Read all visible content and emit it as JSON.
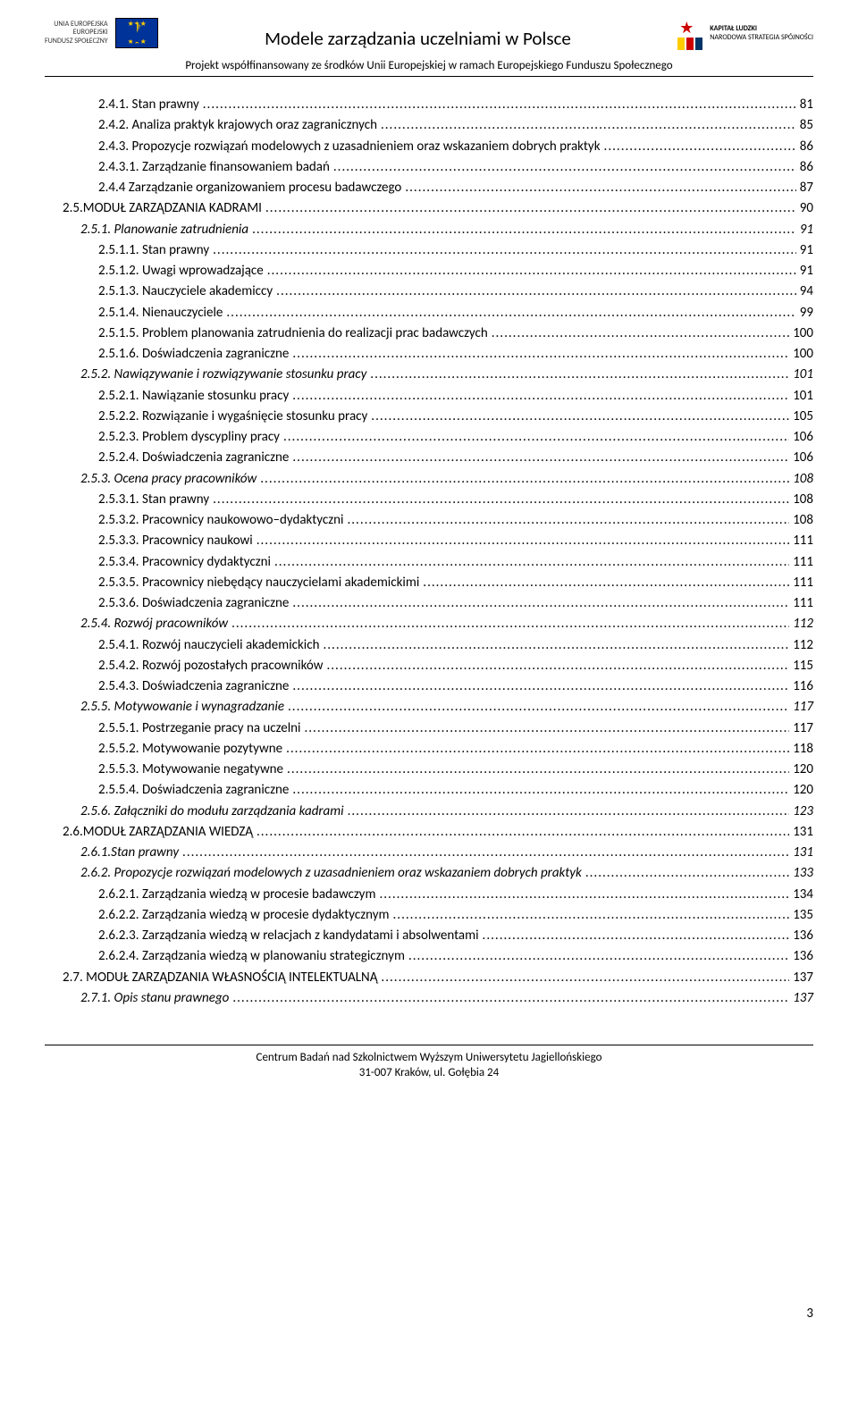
{
  "header": {
    "eu_label_line1": "UNIA EUROPEJSKA",
    "eu_label_line2": "EUROPEJSKI",
    "eu_label_line3": "FUNDUSZ SPOŁECZNY",
    "title": "Modele zarządzania uczelniami w Polsce",
    "kapital_line1": "KAPITAŁ LUDZKI",
    "kapital_line2": "NARODOWA STRATEGIA SPÓJNOŚCI",
    "subtitle": "Projekt współfinansowany ze środków Unii Europejskiej w ramach Europejskiego Funduszu Społecznego"
  },
  "toc": [
    {
      "label": "2.4.1. Stan prawny",
      "page": "81",
      "indent": 3,
      "italic": false
    },
    {
      "label": "2.4.2. Analiza praktyk krajowych oraz zagranicznych",
      "page": "85",
      "indent": 3,
      "italic": false
    },
    {
      "label": "2.4.3. Propozycje rozwiązań modelowych z uzasadnieniem oraz wskazaniem dobrych praktyk",
      "page": "86",
      "indent": 3,
      "italic": false
    },
    {
      "label": "2.4.3.1. Zarządzanie finansowaniem badań",
      "page": "86",
      "indent": 3,
      "italic": false
    },
    {
      "label": "2.4.4 Zarządzanie organizowaniem procesu badawczego",
      "page": "87",
      "indent": 3,
      "italic": false
    },
    {
      "label": "2.5.MODUŁ ZARZĄDZANIA KADRAMI",
      "page": "90",
      "indent": 1,
      "smallcaps": true
    },
    {
      "label": "2.5.1. Planowanie zatrudnienia",
      "page": "91",
      "indent": 2,
      "italic": true
    },
    {
      "label": "2.5.1.1. Stan prawny",
      "page": "91",
      "indent": 3
    },
    {
      "label": "2.5.1.2. Uwagi wprowadzające",
      "page": "91",
      "indent": 3
    },
    {
      "label": "2.5.1.3. Nauczyciele akademiccy",
      "page": "94",
      "indent": 3
    },
    {
      "label": "2.5.1.4. Nienauczyciele",
      "page": "99",
      "indent": 3
    },
    {
      "label": "2.5.1.5. Problem planowania zatrudnienia do realizacji prac badawczych",
      "page": "100",
      "indent": 3
    },
    {
      "label": "2.5.1.6. Doświadczenia zagraniczne",
      "page": "100",
      "indent": 3
    },
    {
      "label": "2.5.2. Nawiązywanie i rozwiązywanie stosunku pracy",
      "page": "101",
      "indent": 2,
      "italic": true
    },
    {
      "label": "2.5.2.1. Nawiązanie stosunku pracy",
      "page": "101",
      "indent": 3
    },
    {
      "label": "2.5.2.2. Rozwiązanie i wygaśnięcie stosunku pracy",
      "page": "105",
      "indent": 3
    },
    {
      "label": "2.5.2.3. Problem dyscypliny pracy",
      "page": "106",
      "indent": 3
    },
    {
      "label": "2.5.2.4. Doświadczenia zagraniczne",
      "page": "106",
      "indent": 3
    },
    {
      "label": "2.5.3. Ocena pracy pracowników",
      "page": "108",
      "indent": 2,
      "italic": true
    },
    {
      "label": "2.5.3.1. Stan prawny",
      "page": "108",
      "indent": 3
    },
    {
      "label": "2.5.3.2. Pracownicy naukowowo–dydaktyczni",
      "page": "108",
      "indent": 3
    },
    {
      "label": "2.5.3.3. Pracownicy naukowi",
      "page": "111",
      "indent": 3
    },
    {
      "label": "2.5.3.4. Pracownicy dydaktyczni",
      "page": "111",
      "indent": 3
    },
    {
      "label": "2.5.3.5. Pracownicy niebędący nauczycielami akademickimi",
      "page": "111",
      "indent": 3
    },
    {
      "label": "2.5.3.6. Doświadczenia zagraniczne",
      "page": "111",
      "indent": 3
    },
    {
      "label": "2.5.4. Rozwój pracowników",
      "page": "112",
      "indent": 2,
      "italic": true
    },
    {
      "label": "2.5.4.1. Rozwój nauczycieli akademickich",
      "page": "112",
      "indent": 3
    },
    {
      "label": "2.5.4.2. Rozwój pozostałych pracowników",
      "page": "115",
      "indent": 3
    },
    {
      "label": "2.5.4.3. Doświadczenia zagraniczne",
      "page": "116",
      "indent": 3
    },
    {
      "label": "2.5.5. Motywowanie i wynagradzanie",
      "page": "117",
      "indent": 2,
      "italic": true
    },
    {
      "label": "2.5.5.1. Postrzeganie pracy na uczelni",
      "page": "117",
      "indent": 3
    },
    {
      "label": "2.5.5.2. Motywowanie pozytywne",
      "page": "118",
      "indent": 3
    },
    {
      "label": "2.5.5.3. Motywowanie negatywne",
      "page": "120",
      "indent": 3
    },
    {
      "label": "2.5.5.4. Doświadczenia zagraniczne",
      "page": "120",
      "indent": 3
    },
    {
      "label": "2.5.6. Załączniki do modułu zarządzania kadrami",
      "page": "123",
      "indent": 2,
      "italic": true
    },
    {
      "label": "2.6.MODUŁ ZARZĄDZANIA WIEDZĄ",
      "page": "131",
      "indent": 1,
      "smallcaps": true
    },
    {
      "label": "2.6.1.Stan prawny",
      "page": "131",
      "indent": 2,
      "italic": true
    },
    {
      "label": "2.6.2. Propozycje rozwiązań modelowych z uzasadnieniem oraz wskazaniem dobrych praktyk",
      "page": "133",
      "indent": 2,
      "italic": true
    },
    {
      "label": "2.6.2.1. Zarządzania wiedzą w procesie badawczym",
      "page": "134",
      "indent": 3
    },
    {
      "label": "2.6.2.2. Zarządzania wiedzą w procesie dydaktycznym",
      "page": "135",
      "indent": 3
    },
    {
      "label": "2.6.2.3. Zarządzania wiedzą w relacjach z kandydatami i absolwentami",
      "page": "136",
      "indent": 3
    },
    {
      "label": "2.6.2.4. Zarządzania wiedzą w planowaniu strategicznym",
      "page": "136",
      "indent": 3
    },
    {
      "label": "2.7. MODUŁ ZARZĄDZANIA WŁASNOŚCIĄ INTELEKTUALNĄ",
      "page": "137",
      "indent": 1,
      "smallcaps": true
    },
    {
      "label": "2.7.1. Opis stanu prawnego",
      "page": "137",
      "indent": 2,
      "italic": true
    }
  ],
  "page_number": "3",
  "footer": {
    "line1": "Centrum Badań nad Szkolnictwem Wyższym Uniwersytetu Jagiellońskiego",
    "line2": "31-007 Kraków, ul. Gołębia 24"
  }
}
